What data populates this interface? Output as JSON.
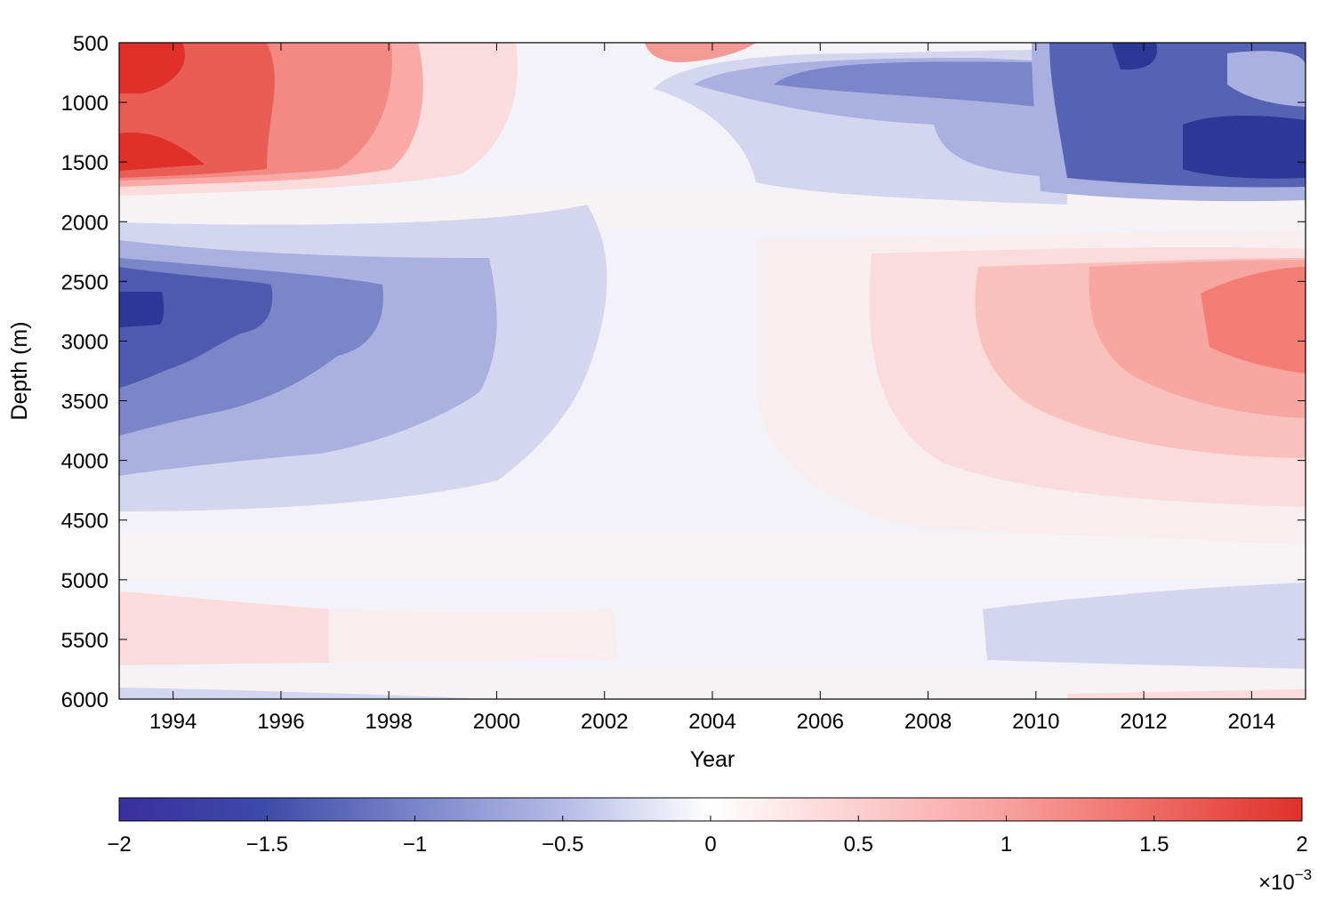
{
  "chart_data": {
    "type": "heatmap",
    "title": "",
    "xlabel": "Year",
    "ylabel": "Depth (m)",
    "xlim": [
      1993,
      2015
    ],
    "ylim": [
      500,
      6000
    ],
    "y_inverted": true,
    "x_ticks": [
      "1994",
      "1996",
      "1998",
      "2000",
      "2002",
      "2004",
      "2006",
      "2008",
      "2010",
      "2012",
      "2014"
    ],
    "y_ticks": [
      "500",
      "1000",
      "1500",
      "2000",
      "2500",
      "3000",
      "3500",
      "4000",
      "4500",
      "5000",
      "5500",
      "6000"
    ],
    "colorbar": {
      "ticks": [
        "−2",
        "−1.5",
        "−1",
        "−0.5",
        "0",
        "0.5",
        "1",
        "1.5",
        "2"
      ],
      "range": [
        -2,
        2
      ],
      "multiplier_base": "×10",
      "multiplier_exponent": "−3",
      "low_color": "#3b2f9e",
      "mid_color": "#ffffff",
      "high_color": "#e0302a"
    },
    "grid": false,
    "contour_regions": [
      {
        "year_range": [
          1993,
          2000
        ],
        "depth_range": [
          500,
          1800
        ],
        "level": 1.2
      },
      {
        "year_range": [
          2000,
          2002.5
        ],
        "depth_range": [
          500,
          1500
        ],
        "level": 0.3
      },
      {
        "year_range": [
          2005,
          2011
        ],
        "depth_range": [
          500,
          1700
        ],
        "level": -0.6
      },
      {
        "year_range": [
          2011,
          2015
        ],
        "depth_range": [
          500,
          1800
        ],
        "level": -1.4
      },
      {
        "year_range": [
          1993,
          2002
        ],
        "depth_range": [
          2050,
          4500
        ],
        "level": -1.1
      },
      {
        "year_range": [
          2006,
          2015
        ],
        "depth_range": [
          2250,
          4500
        ],
        "level": 0.8
      },
      {
        "year_range": [
          1993,
          2002
        ],
        "depth_range": [
          5100,
          5700
        ],
        "level": 0.25
      },
      {
        "year_range": [
          2009,
          2015
        ],
        "depth_range": [
          5050,
          5700
        ],
        "level": -0.3
      }
    ]
  }
}
